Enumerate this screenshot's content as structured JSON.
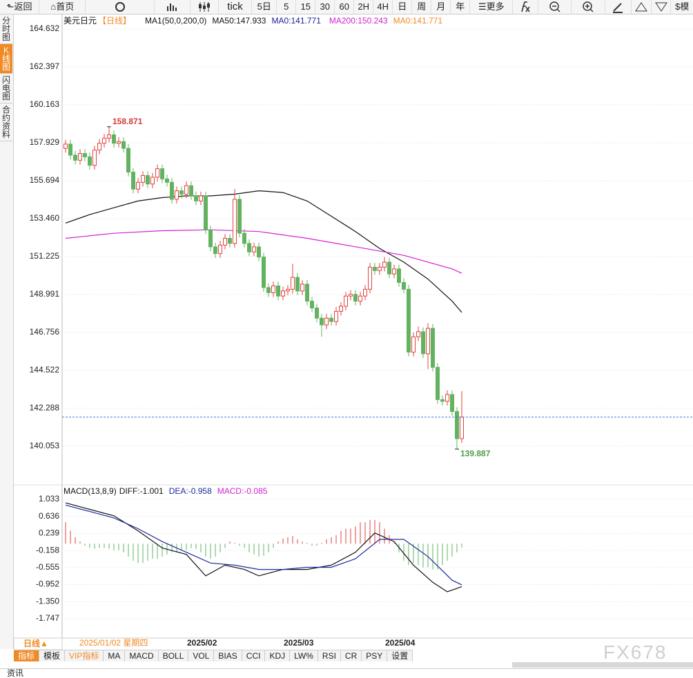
{
  "toolbar": {
    "back": "返回",
    "home": "首页",
    "tick": "tick",
    "periods": [
      "5日",
      "5",
      "15",
      "30",
      "60",
      "2H",
      "4H",
      "日",
      "周",
      "月",
      "年"
    ],
    "more": "更多",
    "extra": "模"
  },
  "sidebar": [
    "分时图",
    "K线图",
    "闪电图",
    "合约资料"
  ],
  "chart_data": [
    {
      "type": "candlestick",
      "title": "美元日元",
      "period": "【日线】",
      "indicator": "MA1(50,0,200,0)",
      "legend_extra": [
        {
          "text": "MA0:141.771",
          "color": "#1c1c9c"
        },
        {
          "text": "MA0:141.771",
          "color": "#f08a24"
        }
      ],
      "categories": [
        null,
        null,
        null,
        null,
        null,
        null,
        null,
        null,
        null,
        null,
        null,
        null,
        null,
        null,
        null,
        null,
        null,
        null,
        null,
        null,
        null,
        null,
        null,
        null,
        null,
        "2025/02",
        null,
        null,
        null,
        null,
        null,
        null,
        null,
        null,
        null,
        null,
        null,
        null,
        null,
        null,
        null,
        null,
        null,
        null,
        null,
        "2025/03",
        null,
        null,
        null,
        null,
        null,
        null,
        null,
        null,
        null,
        null,
        null,
        null,
        null,
        null,
        null,
        null,
        null,
        null,
        null,
        null,
        "2025/04",
        null,
        null,
        null,
        null,
        null,
        null,
        null,
        null,
        null,
        null,
        null,
        null,
        null,
        null,
        null,
        null
      ],
      "cursor_date": "2025/01/02 星期四",
      "candles": [
        [
          157.6,
          158.1,
          157.35,
          157.85
        ],
        [
          157.85,
          158.1,
          156.95,
          157.2
        ],
        [
          157.2,
          157.45,
          156.65,
          156.9
        ],
        [
          156.9,
          157.55,
          156.65,
          157.3
        ],
        [
          157.3,
          157.55,
          156.85,
          157.1
        ],
        [
          157.1,
          157.35,
          156.35,
          156.6
        ],
        [
          156.6,
          157.75,
          156.35,
          157.5
        ],
        [
          157.5,
          158.15,
          157.25,
          157.9
        ],
        [
          157.9,
          158.45,
          157.65,
          158.2
        ],
        [
          158.2,
          158.871,
          157.95,
          158.4
        ],
        [
          158.4,
          158.65,
          157.65,
          157.9
        ],
        [
          157.9,
          158.25,
          157.65,
          158.0
        ],
        [
          158.0,
          158.25,
          157.35,
          157.6
        ],
        [
          157.6,
          157.85,
          155.95,
          156.2
        ],
        [
          156.2,
          156.45,
          154.95,
          155.2
        ],
        [
          155.2,
          155.85,
          154.95,
          155.6
        ],
        [
          155.6,
          156.25,
          155.35,
          156.0
        ],
        [
          156.0,
          156.25,
          155.25,
          155.5
        ],
        [
          155.5,
          156.15,
          155.25,
          155.9
        ],
        [
          155.9,
          156.65,
          155.65,
          156.4
        ],
        [
          156.4,
          156.65,
          155.55,
          155.8
        ],
        [
          155.8,
          156.05,
          155.35,
          155.6
        ],
        [
          155.6,
          155.85,
          154.35,
          154.6
        ],
        [
          154.6,
          155.35,
          154.35,
          155.1
        ],
        [
          155.1,
          155.35,
          154.65,
          154.9
        ],
        [
          154.9,
          155.65,
          154.65,
          155.4
        ],
        [
          155.4,
          155.65,
          154.55,
          154.8
        ],
        [
          154.8,
          155.05,
          154.25,
          154.5
        ],
        [
          154.5,
          155.05,
          154.25,
          154.8
        ],
        [
          154.8,
          155.05,
          152.55,
          152.8
        ],
        [
          152.8,
          153.05,
          151.55,
          151.8
        ],
        [
          151.8,
          152.05,
          151.15,
          151.4
        ],
        [
          151.4,
          152.15,
          151.15,
          151.9
        ],
        [
          151.9,
          152.55,
          151.65,
          152.3
        ],
        [
          152.3,
          152.55,
          151.75,
          152.0
        ],
        [
          152.0,
          155.2,
          151.75,
          154.6
        ],
        [
          154.6,
          154.85,
          152.35,
          152.6
        ],
        [
          152.6,
          152.85,
          151.75,
          152.0
        ],
        [
          152.0,
          152.25,
          151.25,
          151.5
        ],
        [
          151.5,
          152.05,
          151.25,
          151.8
        ],
        [
          151.8,
          152.05,
          150.95,
          151.2
        ],
        [
          151.2,
          151.45,
          149.15,
          149.4
        ],
        [
          149.4,
          149.65,
          148.85,
          149.1
        ],
        [
          149.1,
          149.75,
          148.85,
          149.5
        ],
        [
          149.5,
          149.75,
          148.65,
          148.9
        ],
        [
          148.9,
          149.45,
          148.65,
          149.2
        ],
        [
          149.2,
          149.55,
          148.95,
          149.3
        ],
        [
          149.3,
          150.8,
          149.05,
          150.0
        ],
        [
          150.0,
          150.25,
          148.95,
          149.2
        ],
        [
          149.2,
          149.85,
          148.95,
          149.6
        ],
        [
          149.6,
          149.85,
          148.35,
          148.6
        ],
        [
          148.6,
          148.85,
          147.95,
          148.2
        ],
        [
          148.2,
          148.45,
          147.35,
          147.6
        ],
        [
          147.6,
          147.85,
          146.5,
          147.2
        ],
        [
          147.2,
          147.85,
          146.95,
          147.6
        ],
        [
          147.6,
          147.85,
          147.15,
          147.4
        ],
        [
          147.4,
          148.25,
          147.15,
          148.0
        ],
        [
          148.0,
          148.55,
          147.75,
          148.3
        ],
        [
          148.3,
          149.15,
          148.05,
          148.9
        ],
        [
          148.9,
          149.25,
          148.65,
          149.0
        ],
        [
          149.0,
          149.25,
          148.35,
          148.6
        ],
        [
          148.6,
          149.15,
          148.35,
          148.9
        ],
        [
          148.9,
          149.55,
          148.65,
          149.3
        ],
        [
          149.3,
          150.85,
          149.05,
          150.6
        ],
        [
          150.6,
          150.85,
          150.15,
          150.4
        ],
        [
          150.4,
          150.85,
          150.15,
          150.6
        ],
        [
          150.6,
          151.2,
          150.35,
          150.9
        ],
        [
          150.9,
          151.15,
          149.95,
          150.2
        ],
        [
          150.2,
          150.75,
          149.95,
          150.5
        ],
        [
          150.5,
          150.75,
          149.45,
          149.7
        ],
        [
          149.7,
          149.95,
          149.05,
          149.3
        ],
        [
          149.3,
          149.55,
          145.35,
          145.6
        ],
        [
          145.6,
          146.75,
          145.35,
          146.5
        ],
        [
          146.5,
          147.1,
          146.25,
          146.8
        ],
        [
          146.8,
          147.05,
          145.25,
          145.5
        ],
        [
          145.5,
          147.3,
          144.6,
          147.0
        ],
        [
          147.0,
          147.25,
          144.45,
          144.7
        ],
        [
          144.7,
          144.95,
          142.55,
          142.8
        ],
        [
          142.8,
          143.05,
          142.45,
          142.7
        ],
        [
          142.7,
          143.35,
          142.45,
          143.1
        ],
        [
          143.1,
          143.35,
          141.85,
          142.1
        ],
        [
          142.1,
          142.35,
          139.887,
          140.5
        ],
        [
          140.5,
          143.3,
          140.25,
          141.771
        ]
      ],
      "up_color": "#e0403c",
      "down_color": "#62b35f",
      "series": [
        {
          "name": "MA50:147.933",
          "color": "#111111",
          "x": [
            0,
            5,
            10,
            15,
            20,
            25,
            30,
            35,
            40,
            45,
            50,
            55,
            60,
            65,
            70,
            75,
            80,
            82
          ],
          "values": [
            153.2,
            153.7,
            154.1,
            154.5,
            154.7,
            154.8,
            154.8,
            154.9,
            155.1,
            155.0,
            154.5,
            153.6,
            152.7,
            151.7,
            150.9,
            149.9,
            148.6,
            147.933
          ]
        },
        {
          "name": "MA200:150.243",
          "color": "#d21fd2",
          "x": [
            0,
            10,
            20,
            30,
            40,
            50,
            60,
            70,
            80,
            82
          ],
          "values": [
            152.3,
            152.6,
            152.75,
            152.8,
            152.7,
            152.3,
            151.8,
            151.3,
            150.5,
            150.243
          ]
        }
      ],
      "ylim": [
        137.9,
        165.444
      ],
      "yticks": [
        164.632,
        162.397,
        160.163,
        157.929,
        155.694,
        {
          "value": 153.46,
          "label": "153.460"
        },
        151.225,
        148.991,
        146.756,
        144.522,
        142.288,
        140.053
      ],
      "grid": true,
      "last_price_line": true,
      "annotate_extremes": true
    },
    {
      "type": "macd",
      "title": "MACD(13,8,9)",
      "series": [
        {
          "name": "DIFF:-1.001",
          "color": "#111111",
          "x": [
            0,
            5,
            10,
            15,
            20,
            25,
            29,
            33,
            37,
            40,
            45,
            50,
            55,
            60,
            64,
            68,
            72,
            76,
            79,
            82
          ],
          "values": [
            0.95,
            0.8,
            0.65,
            0.3,
            -0.1,
            -0.25,
            -0.75,
            -0.5,
            -0.6,
            -0.75,
            -0.6,
            -0.6,
            -0.5,
            -0.2,
            0.25,
            0.05,
            -0.5,
            -0.9,
            -1.12,
            -1.001
          ]
        },
        {
          "name": "DEA:-0.958",
          "color": "#1c2a9c",
          "x": [
            0,
            5,
            10,
            15,
            20,
            25,
            30,
            35,
            40,
            45,
            50,
            55,
            60,
            65,
            70,
            75,
            80,
            82
          ],
          "values": [
            0.9,
            0.75,
            0.6,
            0.35,
            0.05,
            -0.2,
            -0.45,
            -0.5,
            -0.6,
            -0.6,
            -0.55,
            -0.55,
            -0.35,
            0.1,
            0.1,
            -0.3,
            -0.85,
            -0.958
          ]
        }
      ],
      "histogram": {
        "name": "MACD:-0.085",
        "color": "#d21fd2",
        "up_color": "#e0403c",
        "down_color": "#62b35f",
        "values": [
          0.5,
          0.3,
          0.15,
          0.05,
          -0.05,
          -0.1,
          -0.12,
          -0.1,
          -0.1,
          -0.12,
          -0.15,
          -0.15,
          -0.2,
          -0.3,
          -0.4,
          -0.45,
          -0.45,
          -0.4,
          -0.35,
          -0.35,
          -0.3,
          -0.25,
          -0.2,
          -0.2,
          -0.15,
          -0.15,
          -0.1,
          -0.12,
          -0.2,
          -0.3,
          -0.35,
          -0.3,
          -0.2,
          -0.1,
          0.05,
          0.02,
          -0.05,
          -0.1,
          -0.2,
          -0.25,
          -0.3,
          -0.28,
          -0.2,
          -0.1,
          0.05,
          0.12,
          0.15,
          0.18,
          0.1,
          0.05,
          0.02,
          -0.05,
          -0.05,
          0.02,
          0.1,
          0.15,
          0.2,
          0.3,
          0.35,
          0.35,
          0.4,
          0.5,
          0.5,
          0.55,
          0.55,
          0.5,
          0.35,
          0.2,
          0.02,
          -0.2,
          -0.4,
          -0.5,
          -0.45,
          -0.5,
          -0.55,
          -0.55,
          -0.6,
          -0.6,
          -0.5,
          -0.4,
          -0.3,
          -0.2,
          -0.085
        ]
      },
      "ylim": [
        -2.197,
        1.338
      ],
      "yticks": [
        1.033,
        0.636,
        0.239,
        -0.158,
        -0.555,
        -0.952,
        {
          "value": -1.35,
          "label": "-1.350"
        },
        -1.747
      ]
    }
  ],
  "period_button": "日线▲",
  "tabs": [
    "指标",
    "模板",
    "VIP指标",
    "MA",
    "MACD",
    "BOLL",
    "VOL",
    "BIAS",
    "CCI",
    "KDJ",
    "LW%",
    "RSI",
    "CR",
    "PSY",
    "设置"
  ],
  "watermark": "FX678",
  "footer": "资讯"
}
